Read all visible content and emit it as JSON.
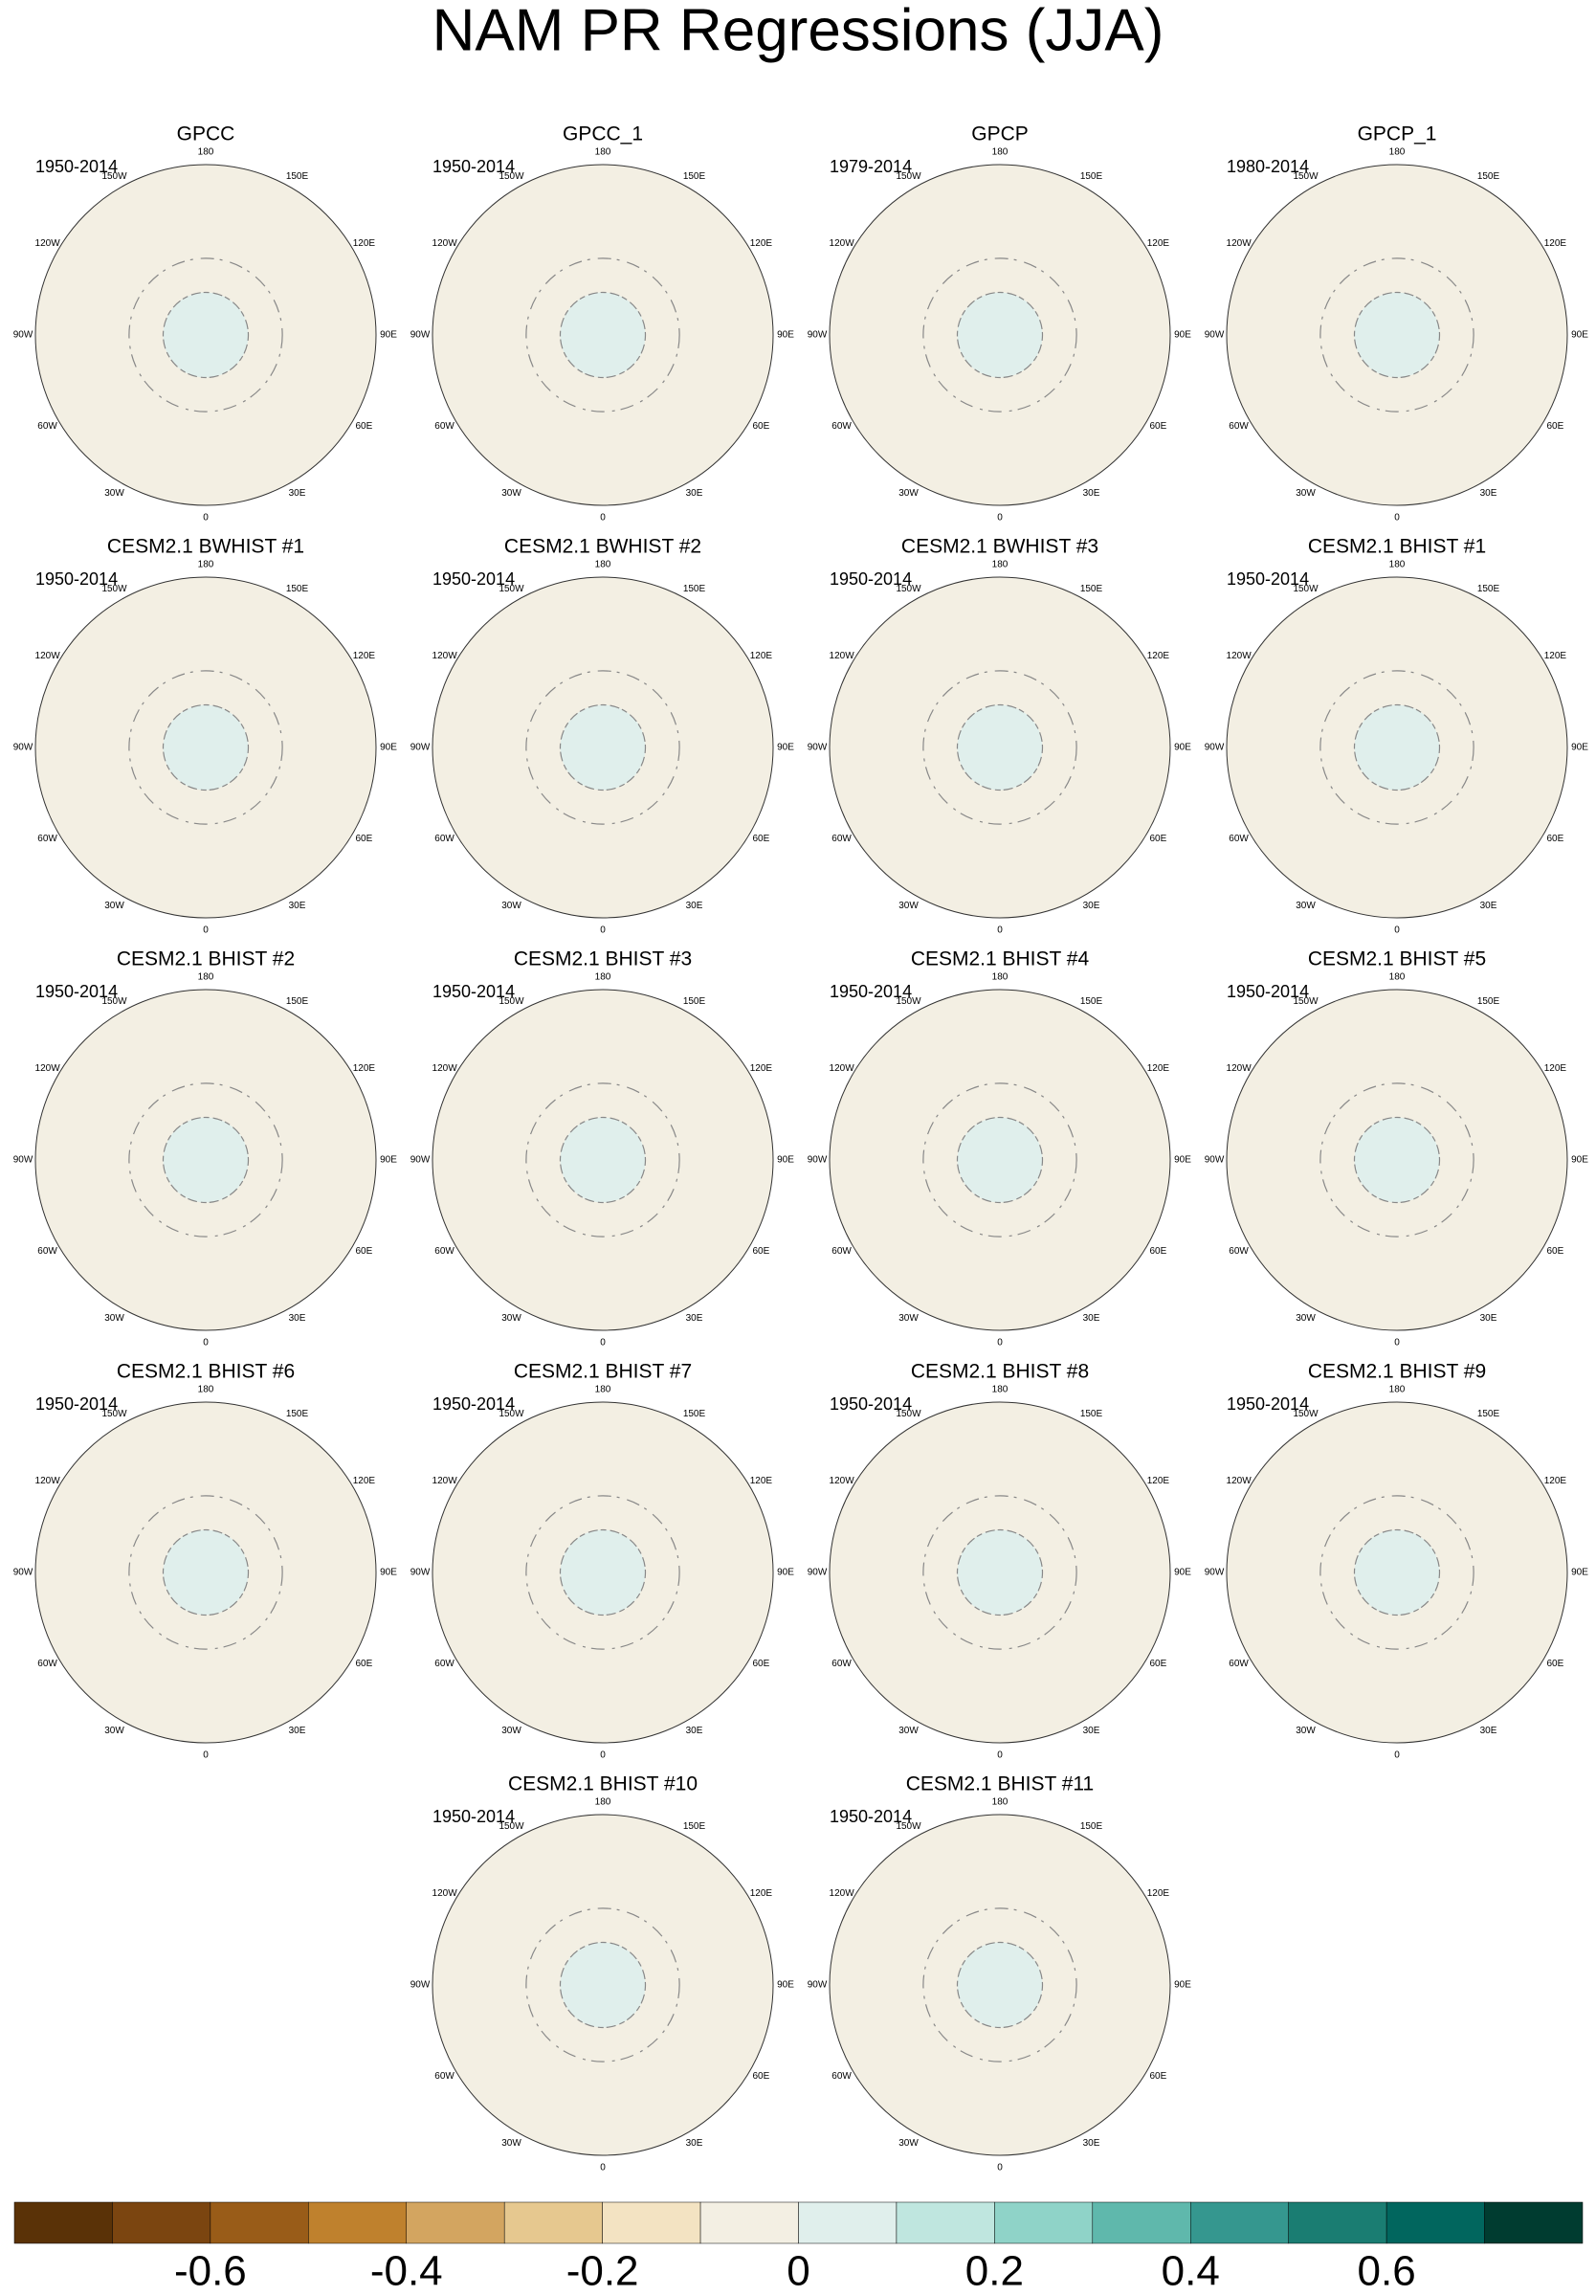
{
  "title": "NAM PR Regressions (JJA)",
  "panels": [
    {
      "title": "GPCC",
      "period": "1950-2014"
    },
    {
      "title": "GPCC_1",
      "period": "1950-2014"
    },
    {
      "title": "GPCP",
      "period": "1979-2014"
    },
    {
      "title": "GPCP_1",
      "period": "1980-2014"
    },
    {
      "title": "CESM2.1 BWHIST #1",
      "period": "1950-2014"
    },
    {
      "title": "CESM2.1 BWHIST #2",
      "period": "1950-2014"
    },
    {
      "title": "CESM2.1 BWHIST #3",
      "period": "1950-2014"
    },
    {
      "title": "CESM2.1 BHIST #1",
      "period": "1950-2014"
    },
    {
      "title": "CESM2.1 BHIST #2",
      "period": "1950-2014"
    },
    {
      "title": "CESM2.1 BHIST #3",
      "period": "1950-2014"
    },
    {
      "title": "CESM2.1 BHIST #4",
      "period": "1950-2014"
    },
    {
      "title": "CESM2.1 BHIST #5",
      "period": "1950-2014"
    },
    {
      "title": "CESM2.1 BHIST #6",
      "period": "1950-2014"
    },
    {
      "title": "CESM2.1 BHIST #7",
      "period": "1950-2014"
    },
    {
      "title": "CESM2.1 BHIST #8",
      "period": "1950-2014"
    },
    {
      "title": "CESM2.1 BHIST #9",
      "period": "1950-2014"
    },
    {
      "title": "CESM2.1 BHIST #10",
      "period": "1950-2014"
    },
    {
      "title": "CESM2.1 BHIST #11",
      "period": "1950-2014"
    }
  ],
  "lon_labels": [
    "180",
    "150E",
    "120E",
    "90E",
    "60E",
    "30E",
    "0",
    "30W",
    "60W",
    "90W",
    "120W",
    "150W"
  ],
  "colorbar": {
    "xlim": [
      -0.8,
      0.8
    ],
    "ticks": [
      -0.6,
      -0.4,
      -0.2,
      0,
      0.2,
      0.4,
      0.6
    ],
    "colors": [
      "#5a3207",
      "#7b4510",
      "#995c18",
      "#bf812d",
      "#d3a560",
      "#e6c88f",
      "#f3e3c2",
      "#f3efe3",
      "#e0efec",
      "#bfe6df",
      "#8fd3c8",
      "#5fb8ac",
      "#35978f",
      "#1a7d72",
      "#01665e",
      "#003c30"
    ]
  }
}
